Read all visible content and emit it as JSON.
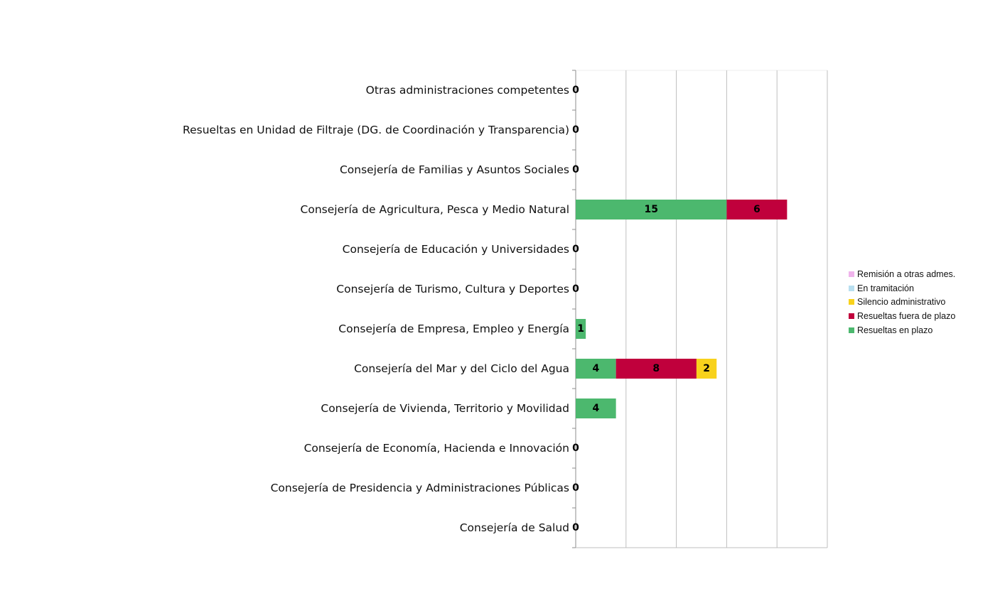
{
  "chart_data": {
    "type": "bar",
    "orientation": "horizontal",
    "stacked": true,
    "title": "",
    "xlabel": "",
    "ylabel": "",
    "xlim": [
      0,
      25
    ],
    "x_gridlines": [
      0,
      5,
      10,
      15,
      20,
      25
    ],
    "grid": true,
    "x_tick_labels_shown": false,
    "legend_position": "right",
    "categories": [
      "Otras administraciones competentes",
      "Resueltas en Unidad de Filtraje (DG. de  Coordinación y Transparencia)",
      "Consejería de Familias y Asuntos Sociales",
      "Consejería de Agricultura, Pesca y  Medio Natural",
      "Consejería de Educación y Universidades",
      "Consejería de Turismo, Cultura y Deportes",
      "Consejería de Empresa, Empleo y Energía",
      "Consejería del Mar y del Ciclo del Agua",
      "Consejería de Vivienda, Territorio y Movilidad",
      "Consejería de Economía, Hacienda e Innovación",
      "Consejería de Presidencia y Administraciones Públicas",
      "Consejería de Salud"
    ],
    "series": [
      {
        "name": "Resueltas en plazo",
        "color": "#4cb86e",
        "values": [
          0,
          0,
          0,
          15,
          0,
          0,
          1,
          4,
          4,
          0,
          0,
          0
        ]
      },
      {
        "name": "Resueltas fuera de plazo",
        "color": "#c0003c",
        "values": [
          0,
          0,
          0,
          6,
          0,
          0,
          0,
          8,
          0,
          0,
          0,
          0
        ]
      },
      {
        "name": "Silencio administrativo",
        "color": "#f8d21c",
        "values": [
          0,
          0,
          0,
          0,
          0,
          0,
          0,
          2,
          0,
          0,
          0,
          0
        ]
      },
      {
        "name": "En tramitación",
        "color": "#b8dff0",
        "values": [
          0,
          0,
          0,
          0,
          0,
          0,
          0,
          0,
          0,
          0,
          0,
          0
        ]
      },
      {
        "name": "Remisión a otras admes.",
        "color": "#f0b4ec",
        "values": [
          0,
          0,
          0,
          0,
          0,
          0,
          0,
          0,
          0,
          0,
          0,
          0
        ]
      }
    ],
    "zero_labels": [
      "0",
      "0",
      "0",
      "",
      "0",
      "0",
      "",
      "",
      "",
      "0",
      "0",
      "0"
    ],
    "legend": [
      {
        "label": "Remisión a otras admes.",
        "color": "#f0b4ec"
      },
      {
        "label": "En tramitación",
        "color": "#b8dff0"
      },
      {
        "label": "Silencio administrativo",
        "color": "#f8d21c"
      },
      {
        "label": "Resueltas fuera de plazo",
        "color": "#c0003c"
      },
      {
        "label": "Resueltas en plazo",
        "color": "#4cb86e"
      }
    ]
  }
}
